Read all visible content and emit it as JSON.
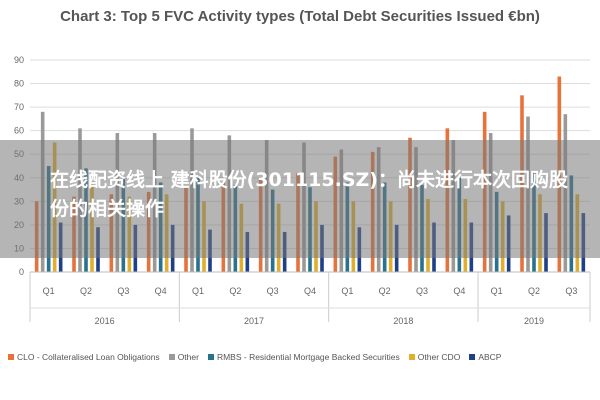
{
  "banner": {
    "text": "在线配资线上 建科股份(301115.SZ)：尚未进行本次回购股份的相关操作"
  },
  "chart_data": {
    "type": "bar",
    "title": "Chart 3: Top 5 FVC Activity types (Total Debt Securities Issued €bn)",
    "ylim": [
      0,
      90
    ],
    "yticks": [
      0,
      10,
      20,
      30,
      40,
      50,
      60,
      70,
      80,
      90
    ],
    "grid": true,
    "legend_position": "bottom",
    "categories": [
      "Q1",
      "Q2",
      "Q3",
      "Q4",
      "Q1",
      "Q2",
      "Q3",
      "Q4",
      "Q1",
      "Q2",
      "Q3",
      "Q4",
      "Q1",
      "Q2",
      "Q3"
    ],
    "years": [
      {
        "label": "2016",
        "quarters": 4
      },
      {
        "label": "2017",
        "quarters": 4
      },
      {
        "label": "2018",
        "quarters": 4
      },
      {
        "label": "2019",
        "quarters": 3
      }
    ],
    "series": [
      {
        "name": "CLO - Collateralised Loan Obligations",
        "color": "#e8733a",
        "values": [
          30,
          32,
          33,
          34,
          36,
          38,
          40,
          42,
          49,
          51,
          57,
          61,
          68,
          75,
          83
        ]
      },
      {
        "name": "Other",
        "color": "#9a9a9a",
        "values": [
          68,
          61,
          59,
          59,
          61,
          58,
          56,
          55,
          52,
          53,
          53,
          56,
          59,
          66,
          67
        ]
      },
      {
        "name": "RMBS - Residential Mortgage Backed Securities",
        "color": "#27728f",
        "values": [
          45,
          44,
          40,
          38,
          40,
          37,
          35,
          36,
          38,
          38,
          37,
          40,
          34,
          42,
          41
        ]
      },
      {
        "name": "Other CDO",
        "color": "#e0b02c",
        "values": [
          55,
          37,
          32,
          33,
          30,
          29,
          29,
          30,
          30,
          30,
          31,
          31,
          30,
          33,
          33
        ]
      },
      {
        "name": "ABCP",
        "color": "#1e3f8a",
        "values": [
          21,
          19,
          20,
          20,
          18,
          17,
          17,
          20,
          19,
          20,
          21,
          21,
          24,
          25,
          25
        ]
      }
    ]
  }
}
